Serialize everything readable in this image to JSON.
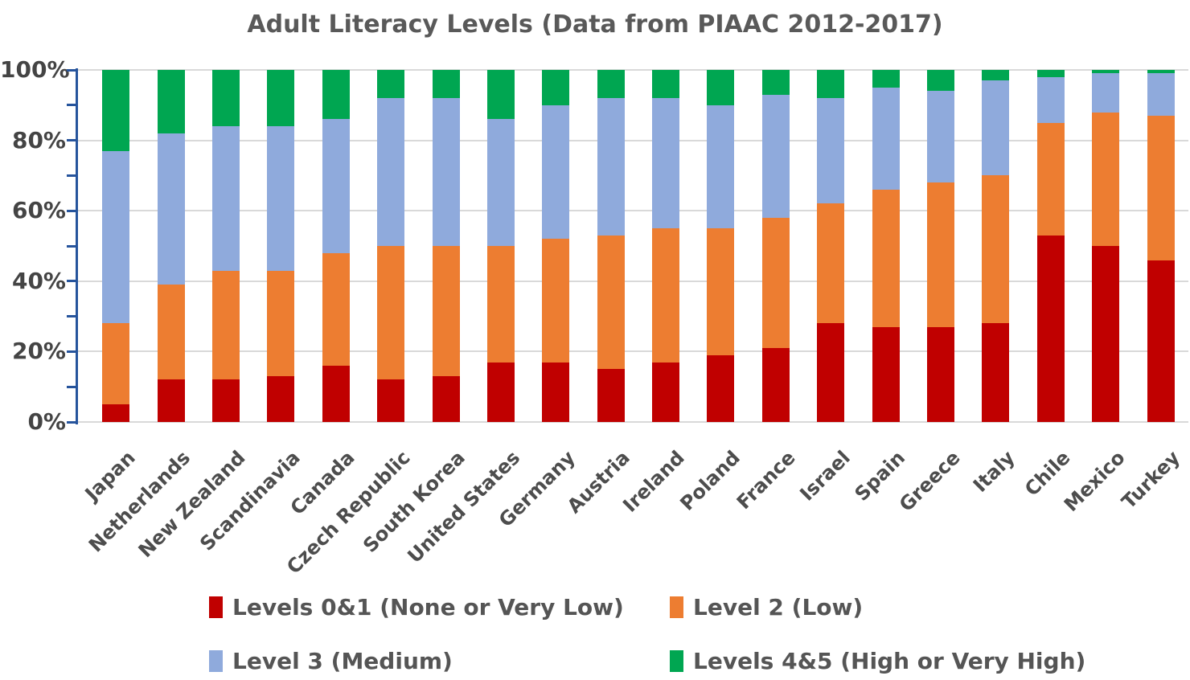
{
  "title": "Adult Literacy Levels (Data from PIAAC 2012-2017)",
  "chart_data": {
    "type": "bar",
    "stacked": true,
    "stack_total": 100,
    "title": "Adult Literacy Levels (Data from PIAAC 2012-2017)",
    "xlabel": "",
    "ylabel": "",
    "ylim": [
      0,
      100
    ],
    "grid": "horizontal-major",
    "legend_position": "bottom",
    "categories": [
      "Japan",
      "Netherlands",
      "New Zealand",
      "Scandinavia",
      "Canada",
      "Czech Republic",
      "South Korea",
      "United States",
      "Germany",
      "Austria",
      "Ireland",
      "Poland",
      "France",
      "Israel",
      "Spain",
      "Greece",
      "Italy",
      "Chile",
      "Mexico",
      "Turkey"
    ],
    "series": [
      {
        "name": "Levels 0&1 (None or Very Low)",
        "color": "#C00000",
        "values": [
          5,
          12,
          12,
          13,
          16,
          12,
          13,
          17,
          17,
          15,
          17,
          19,
          21,
          28,
          27,
          27,
          28,
          53,
          50,
          46
        ]
      },
      {
        "name": "Level 2 (Low)",
        "color": "#ED7D31",
        "values": [
          23,
          27,
          31,
          30,
          32,
          38,
          37,
          33,
          35,
          38,
          38,
          36,
          37,
          34,
          39,
          41,
          42,
          32,
          38,
          41
        ]
      },
      {
        "name": "Level 3 (Medium)",
        "color": "#8FAADC",
        "values": [
          49,
          43,
          41,
          41,
          38,
          42,
          42,
          36,
          38,
          39,
          37,
          35,
          35,
          30,
          29,
          26,
          27,
          13,
          11,
          12
        ]
      },
      {
        "name": "Levels 4&5 (High or Very High)",
        "color": "#00A651",
        "values": [
          23,
          18,
          16,
          16,
          14,
          8,
          8,
          14,
          10,
          8,
          8,
          10,
          7,
          8,
          5,
          6,
          3,
          2,
          1,
          1
        ]
      }
    ],
    "y_axis": {
      "major_ticks": [
        {
          "value": 0,
          "label": "0%"
        },
        {
          "value": 20,
          "label": "20%"
        },
        {
          "value": 40,
          "label": "40%"
        },
        {
          "value": 60,
          "label": "60%"
        },
        {
          "value": 80,
          "label": "80%"
        },
        {
          "value": 100,
          "label": "100%"
        }
      ],
      "minor_tick_step": 10
    }
  },
  "colors": {
    "axis_line": "#26549C",
    "gridline": "#D9D9D9",
    "title_text": "#595959",
    "tick_label_text": "#444444",
    "category_label_text": "#4D4D4D",
    "legend_text": "#555555",
    "background": "#FFFFFF"
  }
}
